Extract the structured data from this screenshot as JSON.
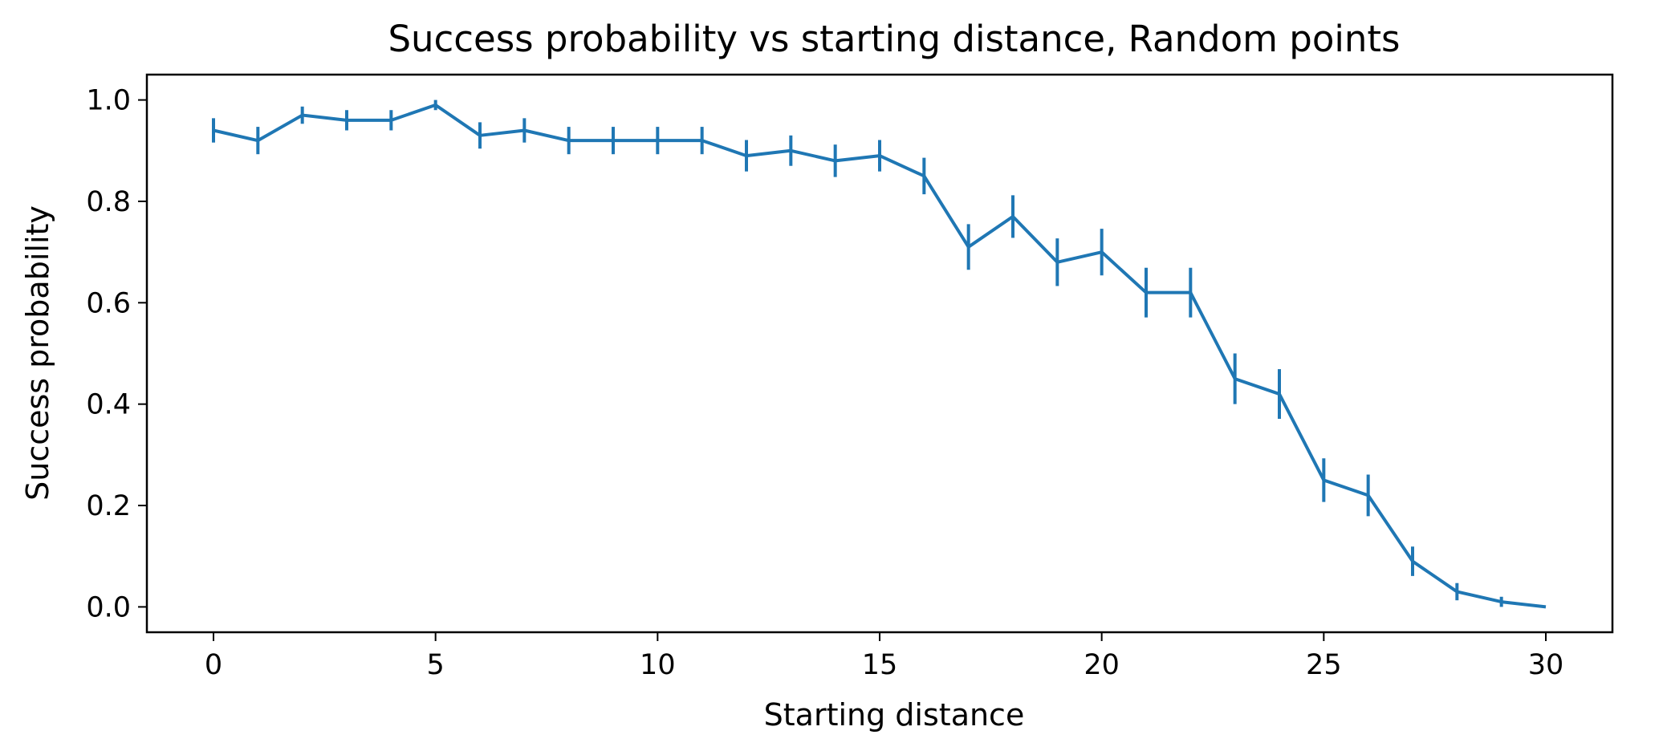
{
  "chart_data": {
    "type": "line",
    "title": "Success probability vs starting distance, Random points",
    "xlabel": "Starting distance",
    "ylabel": "Success probability",
    "xlim": [
      -1.5,
      31.5
    ],
    "ylim": [
      -0.05,
      1.05
    ],
    "x_ticks": [
      "0",
      "5",
      "10",
      "15",
      "20",
      "25",
      "30"
    ],
    "y_ticks": [
      "0.0",
      "0.2",
      "0.4",
      "0.6",
      "0.8",
      "1.0"
    ],
    "grid": false,
    "legend": "none",
    "color": "#1f77b4",
    "series": [
      {
        "x": [
          0,
          1,
          2,
          3,
          4,
          5,
          6,
          7,
          8,
          9,
          10,
          11,
          12,
          13,
          14,
          15,
          16,
          17,
          18,
          19,
          20,
          21,
          22,
          23,
          24,
          25,
          26,
          27,
          28,
          29,
          30
        ],
        "y": [
          0.94,
          0.92,
          0.97,
          0.96,
          0.96,
          0.99,
          0.93,
          0.94,
          0.92,
          0.92,
          0.92,
          0.92,
          0.89,
          0.9,
          0.88,
          0.89,
          0.85,
          0.71,
          0.77,
          0.68,
          0.7,
          0.62,
          0.62,
          0.45,
          0.42,
          0.25,
          0.22,
          0.09,
          0.03,
          0.01,
          0.0
        ],
        "err": [
          0.024,
          0.027,
          0.017,
          0.02,
          0.02,
          0.01,
          0.026,
          0.024,
          0.027,
          0.027,
          0.027,
          0.027,
          0.031,
          0.03,
          0.032,
          0.031,
          0.036,
          0.045,
          0.042,
          0.047,
          0.046,
          0.049,
          0.049,
          0.05,
          0.049,
          0.043,
          0.041,
          0.029,
          0.017,
          0.01,
          0.0
        ]
      }
    ]
  }
}
